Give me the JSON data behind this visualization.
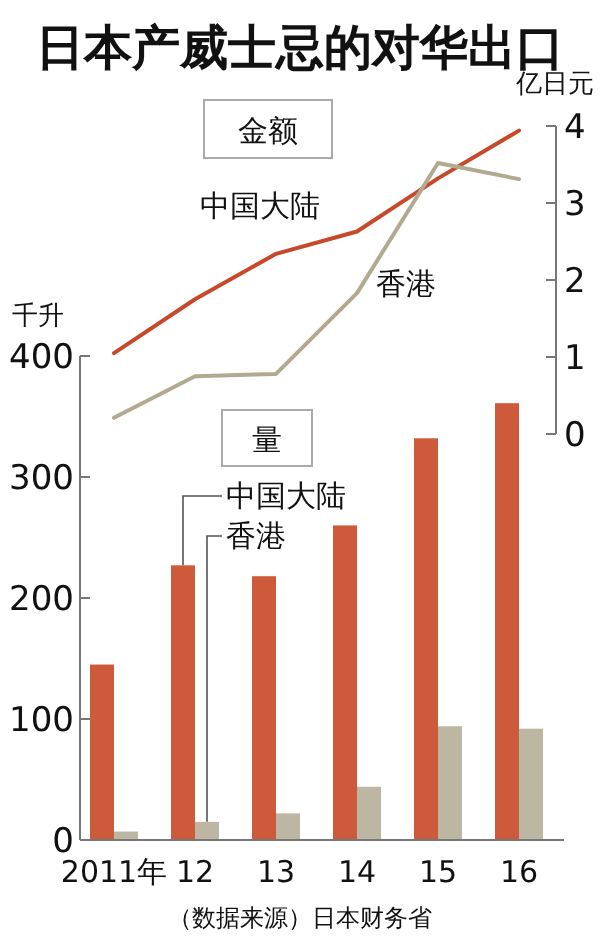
{
  "chart_data": [
    {
      "type": "line",
      "title": "日本产威士忌的对华出口",
      "subtitle": "金额",
      "ylabel": "亿日元",
      "categories": [
        null,
        null,
        null,
        null,
        null,
        null
      ],
      "ylim": [
        0,
        4
      ],
      "yticks": [
        0,
        1,
        2,
        3,
        4
      ],
      "series": [
        {
          "name": "中国大陆",
          "color": "#c8482a",
          "values": [
            1.05,
            1.75,
            2.34,
            2.63,
            3.32,
            3.94
          ]
        },
        {
          "name": "香港",
          "color": "#b2aa8e",
          "values": [
            0.21,
            0.75,
            0.78,
            1.83,
            3.52,
            3.31
          ]
        }
      ]
    },
    {
      "type": "bar",
      "subtitle": "量",
      "ylabel": "千升",
      "categories": [
        "2011年",
        "12",
        "13",
        "14",
        "15",
        "16"
      ],
      "ylim": [
        0,
        400
      ],
      "yticks": [
        0,
        100,
        200,
        300,
        400
      ],
      "annotations": [
        "（数据来源）日本财务省"
      ],
      "series": [
        {
          "name": "中国大陆",
          "color": "#cd5a3a",
          "values": [
            145,
            227,
            218,
            260,
            332,
            361
          ]
        },
        {
          "name": "香港",
          "color": "#bdb6a2",
          "values": [
            7,
            15,
            22,
            44,
            94,
            92
          ]
        }
      ]
    }
  ]
}
